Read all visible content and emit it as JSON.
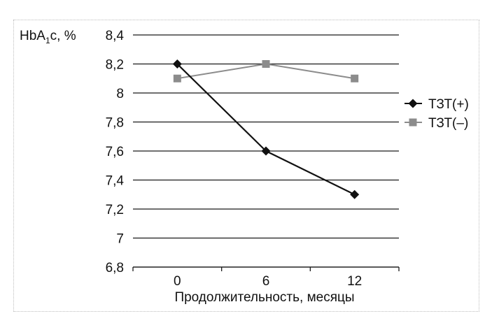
{
  "chart_data": {
    "type": "line",
    "ylabel": "HbA",
    "ylabel_sub": "1",
    "ylabel_tail": "c, %",
    "xlabel": "Продолжительность, месяцы",
    "categories": [
      "0",
      "6",
      "12"
    ],
    "ylim": [
      6.8,
      8.4
    ],
    "yticks": [
      "6,8",
      "7",
      "7,2",
      "7,4",
      "7,6",
      "7,8",
      "8",
      "8,2",
      "8,4"
    ],
    "ytick_values": [
      6.8,
      7.0,
      7.2,
      7.4,
      7.6,
      7.8,
      8.0,
      8.2,
      8.4
    ],
    "grid": true,
    "legend_position": "right",
    "series": [
      {
        "name": "ТЗТ(+)",
        "values": [
          8.2,
          7.6,
          7.3
        ],
        "color": "#111111",
        "marker": "diamond"
      },
      {
        "name": "ТЗТ(–)",
        "values": [
          8.1,
          8.2,
          8.1
        ],
        "color": "#8c8c8c",
        "marker": "square"
      }
    ]
  }
}
